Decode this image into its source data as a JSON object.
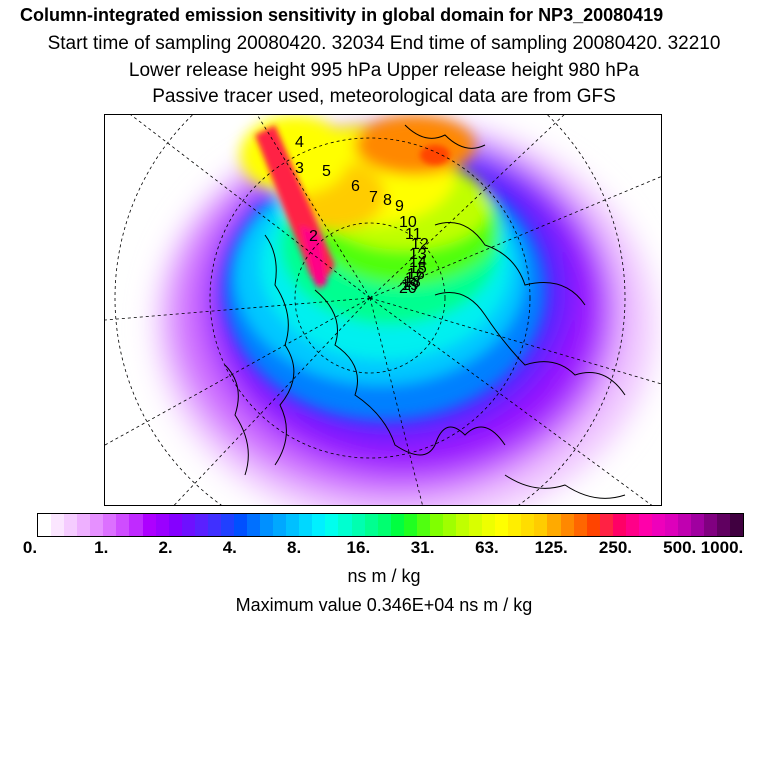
{
  "header": {
    "title": "Column-integrated emission sensitivity in global domain for NP3_20080419",
    "sampling": "Start time of sampling 20080420. 32034     End time of sampling 20080420. 32210",
    "release": "Lower release height  995 hPa        Upper release height  980 hPa",
    "tracer": "Passive tracer used, meteorological data are from GFS"
  },
  "chart_data": {
    "type": "heatmap",
    "projection": "north-polar-stereographic",
    "title": "Column-integrated emission sensitivity in global domain for NP3_20080419",
    "colorbar": {
      "tick_labels": [
        "0.",
        "1.",
        "2.",
        "4.",
        "8.",
        "16.",
        "31.",
        "63.",
        "125.",
        "250.",
        "500.",
        "1000."
      ],
      "unit": "ns m / kg",
      "colors": [
        "#ffffff",
        "#fbe6ff",
        "#f5ccff",
        "#eeb0ff",
        "#e690ff",
        "#dc70ff",
        "#cf4dff",
        "#c02aff",
        "#ad00ff",
        "#9a00ff",
        "#8500ff",
        "#6e10ff",
        "#5a20ff",
        "#4030ff",
        "#2040ff",
        "#0050ff",
        "#0070ff",
        "#0090ff",
        "#00a8ff",
        "#00c0ff",
        "#00d8ff",
        "#00f0ff",
        "#00ffee",
        "#00ffd0",
        "#00ffb0",
        "#00ff90",
        "#00ff70",
        "#00ff40",
        "#20ff20",
        "#50ff10",
        "#80ff00",
        "#a0ff00",
        "#c0ff00",
        "#d8ff00",
        "#eeff00",
        "#ffff00",
        "#ffee00",
        "#ffdd00",
        "#ffcc00",
        "#ffaa00",
        "#ff8800",
        "#ff6600",
        "#ff4400",
        "#ff2244",
        "#ff0066",
        "#ff0088",
        "#ff00aa",
        "#ee00bb",
        "#dd00bb",
        "#c000b0",
        "#a000a0",
        "#800080",
        "#600060",
        "#400040"
      ]
    },
    "maximum": "Maximum value  0.346E+04 ns m / kg",
    "trajectory_labels": [
      "4",
      "3",
      "5",
      "6",
      "7",
      "8",
      "9",
      "10",
      "11",
      "12",
      "13",
      "14",
      "15",
      "16",
      "17",
      "18",
      "19",
      "20",
      "2"
    ]
  }
}
